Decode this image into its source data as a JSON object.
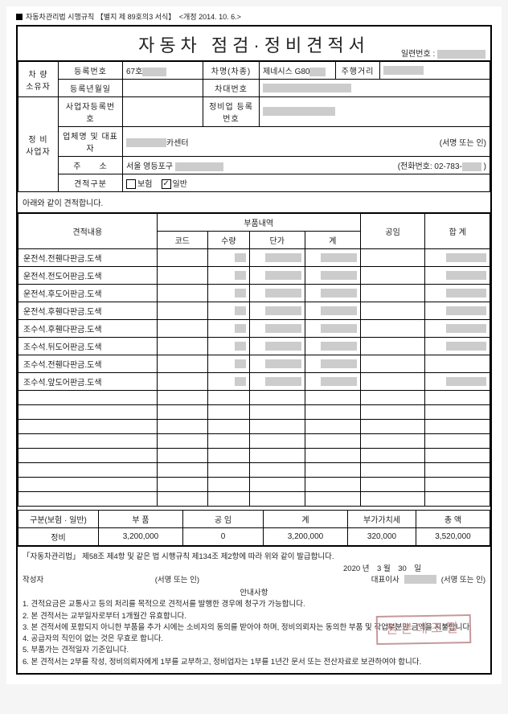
{
  "topNote": "자동차관리법 시행규칙 【별지 제 89호의3 서식】　<개정 2014. 10. 6.>",
  "title": "자동차 점검·정비견적서",
  "serialLabel": "일련번호 :",
  "owner": {
    "section": "차 량\n소유자",
    "regNoLabel": "등록번호",
    "regNo": "67호",
    "carNameLabel": "차명(차종)",
    "carName": "제네시스 G80",
    "mileageLabel": "주행거리",
    "regDateLabel": "등록년월일",
    "vinLabel": "차대번호"
  },
  "shop": {
    "section": "정 비\n사업자",
    "bizNoLabel": "사업자등록번호",
    "shopRegNoLabel": "정비업 등록번호",
    "companyLabel": "업체명 및 대표자",
    "company": "카센터",
    "sealNote": "(서명 또는 인)",
    "addrLabel": "주　　소",
    "addr": "서울 영등포구",
    "phoneLabel": "(전화번호:",
    "phone": "02-783-",
    "estTypeLabel": "견적구분",
    "insLabel": "보험",
    "genLabel": "일반"
  },
  "estNote": "아래와 같이 견적합니다.",
  "headers": {
    "content": "견적내용",
    "parts": "부품내역",
    "code": "코드",
    "qty": "수량",
    "unit": "단가",
    "sub": "계",
    "labor": "공임",
    "total": "합 계"
  },
  "items": [
    {
      "name": "운전석.전휀다판금.도색",
      "hasAmt": true
    },
    {
      "name": "운전석.전도어판금.도색",
      "hasAmt": true
    },
    {
      "name": "운전석.후도어판금.도색",
      "hasAmt": true
    },
    {
      "name": "운전석.후휀다판금.도색",
      "hasAmt": true
    },
    {
      "name": "조수석.후휀다판금.도색",
      "hasAmt": true
    },
    {
      "name": "조수석.뒤도어판금.도색",
      "hasAmt": true
    },
    {
      "name": "조수석.전휀다판금.도색",
      "hasAmt": false
    },
    {
      "name": "조수석.앞도어판금.도색",
      "hasAmt": true
    }
  ],
  "summary": {
    "classLabel": "구분(보험 · 일반)",
    "partsLabel": "부 품",
    "laborLabel": "공 임",
    "subLabel": "계",
    "vatLabel": "부가가치세",
    "totalLabel": "총 액",
    "class": "정비",
    "parts": "3,200,000",
    "labor": "0",
    "sub": "3,200,000",
    "vat": "320,000",
    "total": "3,520,000"
  },
  "footer": {
    "law": "「자동차관리법」 제58조 제4항 및 같은 법 시행규칙 제134조 제2항에 따라 위와 같이 발급합니다.",
    "date": "2020 년　3 월　30　일",
    "writerLabel": "작성자",
    "seal": "(서명 또는 인)",
    "ceoLabel": "대표이사",
    "guideTitle": "안내사항",
    "g1": "1. 견적요금은 교통사고 등의 처리를 목적으로 견적서를 발행한 경우에 청구가 가능합니다.",
    "g2": "2. 본 견적서는 교부일자로부터 1개월간 유효합니다.",
    "g3": "3. 본 견적서에 포함되지 아니한 부품을 추가 시에는 소비자의 동의를 받아야 하며, 정비의뢰자는 동의한 부품 및 작업부분만 금액을 지불합니다.",
    "g4": "4. 공급자의 직인이 없는 것은 무효로 합니다.",
    "g5": "5. 부품가는 견적일자 기준입니다.",
    "g6": "6. 본 견적서는 2부를 작성, 정비의뢰자에게 1부를 교부하고, 정비업자는 1부를 1년간 문서 또는 전산자료로 보관하여야 합니다.",
    "stamp": "원본대조필"
  }
}
